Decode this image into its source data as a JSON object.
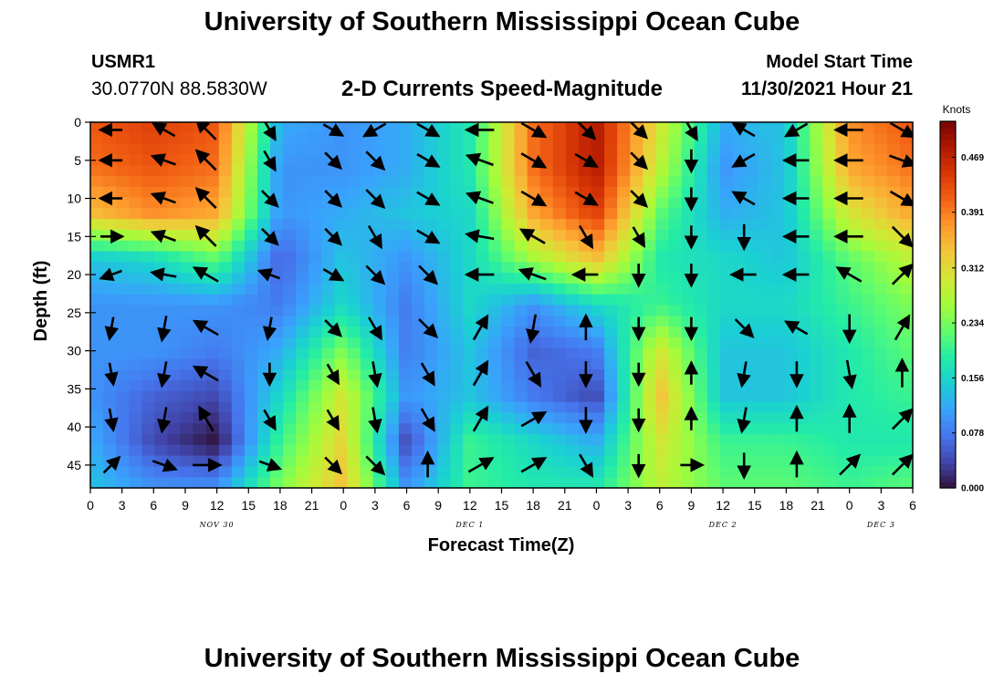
{
  "page": {
    "title": "University of Southern Mississippi Ocean Cube",
    "title_repeat": "University of Southern Mississippi Ocean Cube",
    "station": "USMR1",
    "coords": "30.0770N  88.5830W",
    "subtitle": "2-D Currents Speed-Magnitude",
    "model_start_label": "Model Start Time",
    "model_start_value": "11/30/2021 Hour 21"
  },
  "chart_data": {
    "type": "heatmap",
    "title": "2-D Currents Speed-Magnitude",
    "xlabel": "Forecast Time(Z)",
    "ylabel": "Depth (ft)",
    "x_tick_labels": [
      "0",
      "3",
      "6",
      "9",
      "12",
      "15",
      "18",
      "21",
      "0",
      "3",
      "6",
      "9",
      "12",
      "15",
      "18",
      "21",
      "0",
      "3",
      "6",
      "9",
      "12",
      "15",
      "18",
      "21",
      "0",
      "3",
      "6"
    ],
    "day_labels": [
      {
        "label": "NOV 30",
        "hour": 12
      },
      {
        "label": "DEC 1",
        "hour": 36
      },
      {
        "label": "DEC 2",
        "hour": 60
      },
      {
        "label": "DEC 3",
        "hour": 75
      }
    ],
    "x_range_hours": [
      0,
      78
    ],
    "y_ticks": [
      0,
      5,
      10,
      15,
      20,
      25,
      30,
      35,
      40,
      45
    ],
    "y_range_ft": [
      0,
      48
    ],
    "colorbar": {
      "unit": "Knots",
      "ticks": [
        0.0,
        0.078,
        0.156,
        0.234,
        0.312,
        0.391,
        0.469
      ],
      "tick_labels": [
        "0.000",
        "0.078",
        "0.156",
        "0.234",
        "0.312",
        "0.391",
        "0.469"
      ],
      "range": [
        0,
        0.52
      ],
      "colors": [
        "#30123b",
        "#4145ab",
        "#4675ed",
        "#39a2fc",
        "#1bcfd4",
        "#24eca6",
        "#61fc6c",
        "#a4fc3b",
        "#d1e834",
        "#f3c63a",
        "#fe9b2d",
        "#f36315",
        "#d93806",
        "#b11901",
        "#7a0402"
      ]
    },
    "speed_field": {
      "description": "Estimated current speed (knots); columns every 6 hours from hour 0 to 78, rows at depths 0, 6, 12, 18, 24, 30, 36, 42, 48 ft",
      "hours": [
        0,
        6,
        12,
        18,
        24,
        30,
        36,
        42,
        48,
        54,
        60,
        66,
        72,
        78
      ],
      "depths": [
        0,
        6,
        12,
        18,
        24,
        30,
        36,
        42,
        48
      ],
      "values": [
        [
          0.42,
          0.44,
          0.42,
          0.12,
          0.1,
          0.12,
          0.18,
          0.4,
          0.48,
          0.3,
          0.12,
          0.14,
          0.38,
          0.42
        ],
        [
          0.4,
          0.42,
          0.4,
          0.1,
          0.1,
          0.12,
          0.18,
          0.4,
          0.48,
          0.28,
          0.1,
          0.14,
          0.36,
          0.4
        ],
        [
          0.34,
          0.38,
          0.36,
          0.1,
          0.12,
          0.14,
          0.16,
          0.36,
          0.44,
          0.22,
          0.12,
          0.14,
          0.3,
          0.36
        ],
        [
          0.14,
          0.16,
          0.22,
          0.06,
          0.14,
          0.1,
          0.16,
          0.26,
          0.34,
          0.18,
          0.16,
          0.14,
          0.22,
          0.28
        ],
        [
          0.1,
          0.1,
          0.1,
          0.08,
          0.16,
          0.08,
          0.16,
          0.1,
          0.16,
          0.2,
          0.16,
          0.16,
          0.2,
          0.24
        ],
        [
          0.1,
          0.1,
          0.08,
          0.12,
          0.24,
          0.08,
          0.14,
          0.06,
          0.08,
          0.3,
          0.14,
          0.14,
          0.18,
          0.22
        ],
        [
          0.1,
          0.06,
          0.04,
          0.16,
          0.3,
          0.1,
          0.14,
          0.08,
          0.04,
          0.34,
          0.14,
          0.14,
          0.18,
          0.2
        ],
        [
          0.12,
          0.04,
          0.0,
          0.2,
          0.32,
          0.04,
          0.2,
          0.16,
          0.12,
          0.3,
          0.2,
          0.2,
          0.18,
          0.18
        ],
        [
          0.14,
          0.1,
          0.1,
          0.24,
          0.34,
          0.1,
          0.2,
          0.18,
          0.18,
          0.28,
          0.22,
          0.22,
          0.2,
          0.22
        ]
      ]
    },
    "current_vectors": {
      "description": "Approximate arrow directions (degrees, math convention: 0=east, 90=north) and relative lengths at sampled hours and depths",
      "hours": [
        2,
        7,
        11,
        17,
        23,
        27,
        32,
        37,
        42,
        47,
        52,
        57,
        62,
        67,
        72,
        77
      ],
      "depths": [
        1,
        5,
        10,
        15,
        20,
        27,
        33,
        39,
        45
      ],
      "directions_deg": [
        [
          180,
          150,
          135,
          -60,
          -30,
          -150,
          -30,
          180,
          -30,
          -45,
          -45,
          -60,
          150,
          -150,
          180,
          -30
        ],
        [
          180,
          160,
          135,
          -60,
          -45,
          -45,
          -30,
          160,
          -30,
          -30,
          -45,
          -90,
          -150,
          180,
          180,
          -20
        ],
        [
          180,
          160,
          135,
          -45,
          -45,
          -45,
          -30,
          160,
          -30,
          -30,
          -45,
          -90,
          150,
          180,
          180,
          -30
        ],
        [
          0,
          160,
          135,
          -45,
          -45,
          -60,
          -30,
          170,
          150,
          -60,
          -60,
          -90,
          -90,
          180,
          180,
          -45
        ],
        [
          200,
          170,
          150,
          160,
          -30,
          -45,
          -45,
          180,
          160,
          180,
          -90,
          -90,
          180,
          180,
          150,
          45
        ],
        [
          -100,
          -100,
          150,
          -100,
          -45,
          -60,
          -45,
          60,
          -100,
          90,
          -90,
          -90,
          -45,
          150,
          -90,
          60
        ],
        [
          -80,
          -100,
          150,
          -90,
          -60,
          -80,
          -60,
          60,
          -60,
          -90,
          -90,
          90,
          -100,
          -90,
          -80,
          90
        ],
        [
          -80,
          -100,
          120,
          -60,
          -60,
          -80,
          -60,
          60,
          30,
          -90,
          -90,
          90,
          -100,
          90,
          90,
          45
        ],
        [
          45,
          -20,
          0,
          -20,
          -45,
          -45,
          90,
          30,
          30,
          -60,
          -90,
          0,
          -90,
          90,
          45,
          45
        ]
      ],
      "lengths_rel": [
        0.8,
        0.9,
        1.0,
        0.8,
        0.8,
        0.9,
        0.9,
        1.0,
        1.0,
        0.9,
        0.8,
        0.8,
        0.9,
        0.9,
        1.0,
        1.0
      ]
    }
  }
}
